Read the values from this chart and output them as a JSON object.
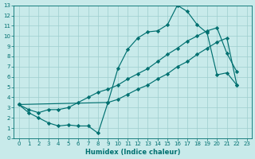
{
  "xlabel": "Humidex (Indice chaleur)",
  "bg_color": "#c8eaea",
  "grid_color": "#9ecece",
  "line_color": "#007070",
  "xlim": [
    -0.5,
    23.5
  ],
  "ylim": [
    0,
    13
  ],
  "xtick_labels": [
    "0",
    "1",
    "2",
    "3",
    "4",
    "5",
    "6",
    "7",
    "8",
    "9",
    "10",
    "11",
    "12",
    "13",
    "14",
    "15",
    "16",
    "17",
    "18",
    "19",
    "20",
    "21",
    "22",
    "23"
  ],
  "xtick_vals": [
    0,
    1,
    2,
    3,
    4,
    5,
    6,
    7,
    8,
    9,
    10,
    11,
    12,
    13,
    14,
    15,
    16,
    17,
    18,
    19,
    20,
    21,
    22,
    23
  ],
  "yticks": [
    0,
    1,
    2,
    3,
    4,
    5,
    6,
    7,
    8,
    9,
    10,
    11,
    12,
    13
  ],
  "line1_x": [
    0,
    1,
    2,
    3,
    4,
    5,
    6,
    7,
    8,
    9,
    10,
    11,
    12,
    13,
    14,
    15,
    16,
    17,
    18,
    19,
    20,
    21,
    22
  ],
  "line1_y": [
    3.3,
    2.5,
    2.0,
    1.5,
    1.2,
    1.3,
    1.2,
    1.2,
    0.5,
    3.5,
    6.8,
    8.7,
    9.8,
    10.4,
    10.5,
    11.1,
    13.0,
    12.4,
    11.1,
    10.3,
    6.2,
    6.4,
    5.2
  ],
  "line2_x": [
    0,
    1,
    2,
    3,
    4,
    5,
    6,
    7,
    8,
    9,
    10,
    11,
    12,
    13,
    14,
    15,
    16,
    17,
    18,
    19,
    20,
    21,
    22
  ],
  "line2_y": [
    3.3,
    2.8,
    2.5,
    2.8,
    2.8,
    3.0,
    3.5,
    4.0,
    4.5,
    4.8,
    5.2,
    5.8,
    6.3,
    6.8,
    7.5,
    8.2,
    8.8,
    9.5,
    10.0,
    10.5,
    10.8,
    8.3,
    6.5
  ],
  "line3_x": [
    0,
    9,
    10,
    11,
    12,
    13,
    14,
    15,
    16,
    17,
    18,
    19,
    20,
    21,
    22
  ],
  "line3_y": [
    3.3,
    3.5,
    3.8,
    4.3,
    4.8,
    5.2,
    5.8,
    6.3,
    7.0,
    7.5,
    8.2,
    8.8,
    9.4,
    9.8,
    5.2
  ],
  "marker": "D",
  "markersize": 2.2,
  "linewidth": 0.85,
  "tick_fontsize": 5.0,
  "xlabel_fontsize": 6.0
}
